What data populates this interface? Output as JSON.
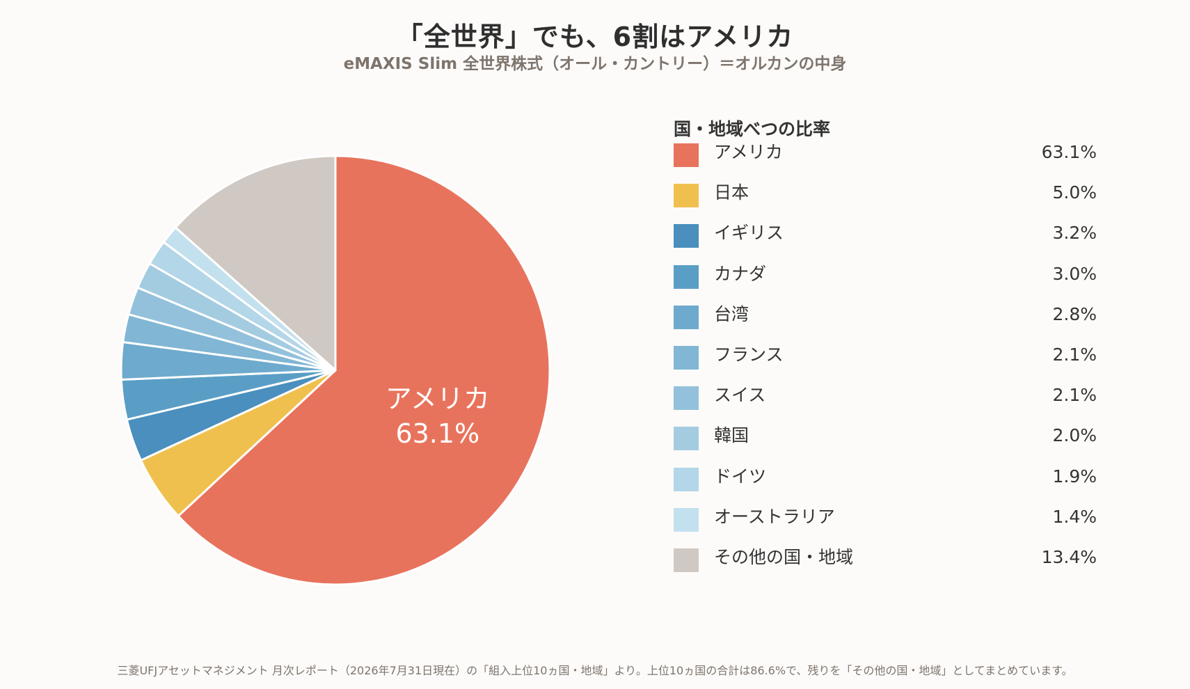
{
  "header": {
    "title": "「全世界」でも、6割はアメリカ",
    "subtitle": "eMAXIS Slim 全世界株式（オール・カントリー）＝オルカンの中身"
  },
  "legend": {
    "title": "国・地域べつの比率"
  },
  "chart_data": {
    "type": "pie",
    "title": "「全世界」でも、6割はアメリカ",
    "subtitle": "eMAXIS Slim 全世界株式（オール・カントリー）＝オルカンの中身",
    "start_angle_deg": 0,
    "direction": "clockwise",
    "unit": "%",
    "legend_title": "国・地域べつの比率",
    "legend_position": "right",
    "slices": [
      {
        "label": "アメリカ",
        "value": 63.1,
        "value_text": "63.1%",
        "color": "#e8735c"
      },
      {
        "label": "日本",
        "value": 5.0,
        "value_text": "5.0%",
        "color": "#f0c04f"
      },
      {
        "label": "イギリス",
        "value": 3.2,
        "value_text": "3.2%",
        "color": "#4a8fbd"
      },
      {
        "label": "カナダ",
        "value": 3.0,
        "value_text": "3.0%",
        "color": "#5a9ec6"
      },
      {
        "label": "台湾",
        "value": 2.8,
        "value_text": "2.8%",
        "color": "#6eaacd"
      },
      {
        "label": "フランス",
        "value": 2.1,
        "value_text": "2.1%",
        "color": "#81b6d4"
      },
      {
        "label": "スイス",
        "value": 2.1,
        "value_text": "2.1%",
        "color": "#93c1db"
      },
      {
        "label": "韓国",
        "value": 2.0,
        "value_text": "2.0%",
        "color": "#a4cce1"
      },
      {
        "label": "ドイツ",
        "value": 1.9,
        "value_text": "1.9%",
        "color": "#b3d6e8"
      },
      {
        "label": "オーストラリア",
        "value": 1.4,
        "value_text": "1.4%",
        "color": "#c3e0ee"
      },
      {
        "label": "その他の国・地域",
        "value": 13.4,
        "value_text": "13.4%",
        "color": "#d0c8c2"
      }
    ],
    "inside_label": {
      "label": "アメリカ",
      "value_text": "63.1%"
    }
  },
  "footnote": "三菱UFJアセットマネジメント 月次レポート（2026年7月31日現在）の「組入上位10ヵ国・地域」より。上位10ヵ国の合計は86.6%で、残りを「その他の国・地域」としてまとめています。"
}
